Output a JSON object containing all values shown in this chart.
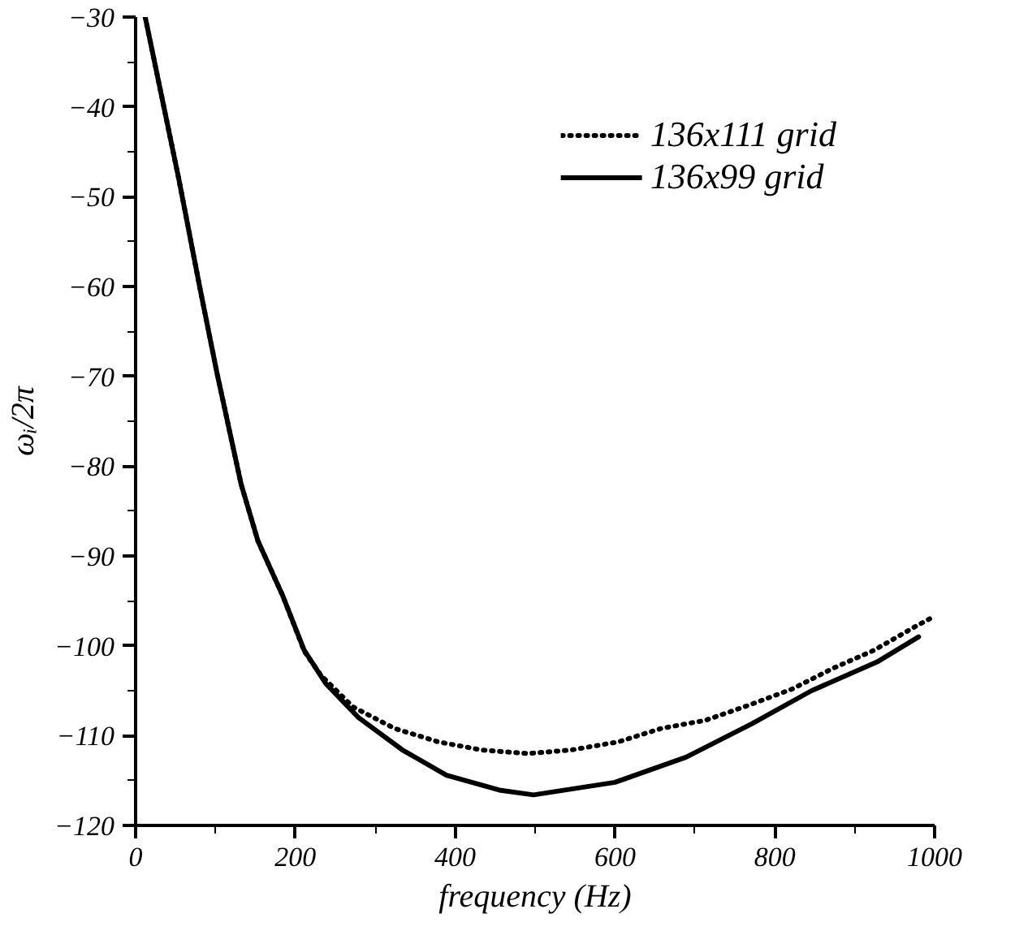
{
  "chart_data": {
    "type": "line",
    "xlabel": "frequency (Hz)",
    "ylabel": "ωᵢ/2π",
    "xlim": [
      0,
      1000
    ],
    "ylim": [
      -120,
      -30
    ],
    "xticks": [
      0,
      {
        "value": 100,
        "label": null
      },
      200,
      {
        "value": 300,
        "label": null
      },
      400,
      {
        "value": 500,
        "label": null
      },
      600,
      {
        "value": 700,
        "label": null
      },
      800,
      {
        "value": 900,
        "label": null
      },
      1000
    ],
    "yticks": [
      -120,
      {
        "value": -115,
        "label": null
      },
      -110,
      {
        "value": -105,
        "label": null
      },
      -100,
      {
        "value": -95,
        "label": null
      },
      -90,
      {
        "value": -85,
        "label": null
      },
      -80,
      {
        "value": -75,
        "label": null
      },
      -70,
      {
        "value": -65,
        "label": null
      },
      -60,
      {
        "value": -55,
        "label": null
      },
      -50,
      {
        "value": -45,
        "label": null
      },
      -40,
      {
        "value": -35,
        "label": null
      },
      -30
    ],
    "grid": false,
    "legend": "top right",
    "marker": "none",
    "series": [
      {
        "name": "136x111 grid",
        "color": "#000000",
        "line_style": "dotted",
        "x": [
          12,
          54,
          81,
          102,
          132,
          153,
          184,
          211,
          232,
          272,
          324,
          379,
          433,
          491,
          545,
          604,
          658,
          713,
          768,
          822,
          873,
          924,
          975,
          998
        ],
        "values": [
          -30,
          -48,
          -60.4,
          -69.7,
          -82,
          -88.3,
          -94.4,
          -100.6,
          -103.3,
          -106.8,
          -109.2,
          -110.7,
          -111.6,
          -112,
          -111.6,
          -110.7,
          -109.2,
          -108.3,
          -106.6,
          -104.8,
          -102.5,
          -100.5,
          -97.9,
          -96.8
        ]
      },
      {
        "name": "136x99 grid",
        "color": "#000000",
        "line_style": "solid",
        "x": [
          12,
          54,
          81,
          102,
          132,
          153,
          184,
          211,
          238,
          279,
          334,
          389,
          457,
          498,
          600,
          689,
          771,
          846,
          928,
          980
        ],
        "values": [
          -30,
          -48,
          -60.4,
          -69.7,
          -82,
          -88.3,
          -94.4,
          -100.5,
          -104.2,
          -108,
          -111.6,
          -114.4,
          -116.1,
          -116.6,
          -115.2,
          -112.4,
          -108.7,
          -105,
          -101.8,
          -99
        ]
      }
    ]
  }
}
